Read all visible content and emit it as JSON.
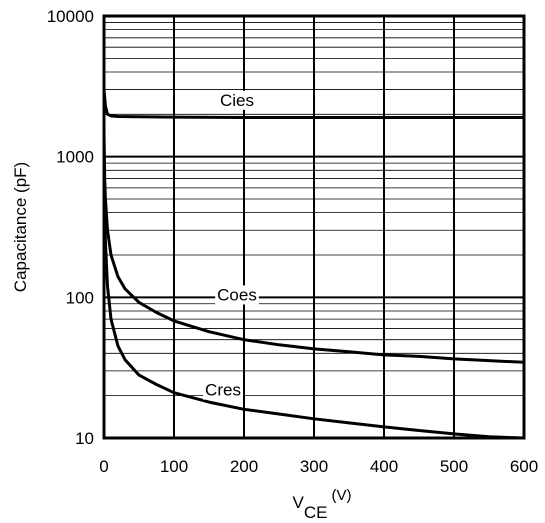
{
  "chart_data": {
    "type": "line",
    "title": "",
    "xlabel": {
      "main": "V",
      "sub": "CE",
      "unit": "(V)"
    },
    "ylabel": "Capacitance (pF)",
    "xlim": [
      0,
      600
    ],
    "ylim": [
      10,
      10000
    ],
    "y_scale": "log",
    "grid": true,
    "x_ticks": [
      0,
      100,
      200,
      300,
      400,
      500,
      600
    ],
    "x_tick_labels": [
      "0",
      "100",
      "200",
      "300",
      "400",
      "500",
      "600"
    ],
    "y_ticks": [
      10,
      100,
      1000,
      10000
    ],
    "y_tick_labels": [
      "10",
      "100",
      "1000",
      "10000"
    ],
    "series": [
      {
        "name": "Cies",
        "label_at": [
          190,
          2300
        ],
        "x": [
          0,
          2,
          5,
          10,
          20,
          50,
          100,
          200,
          300,
          400,
          500,
          600
        ],
        "y": [
          3000,
          2300,
          2000,
          1950,
          1930,
          1920,
          1910,
          1900,
          1900,
          1900,
          1900,
          1900
        ]
      },
      {
        "name": "Coes",
        "label_at": [
          190,
          95
        ],
        "x": [
          0,
          1,
          2,
          5,
          10,
          20,
          30,
          50,
          75,
          100,
          150,
          200,
          250,
          300,
          350,
          400,
          450,
          500,
          550,
          600
        ],
        "y": [
          1500,
          700,
          500,
          300,
          200,
          140,
          115,
          92,
          78,
          68,
          57,
          50,
          46,
          43,
          41,
          39,
          38,
          36.5,
          35.5,
          34.5
        ]
      },
      {
        "name": "Cres",
        "label_at": [
          170,
          20
        ],
        "x": [
          0,
          1,
          2,
          5,
          10,
          20,
          30,
          50,
          75,
          100,
          150,
          200,
          250,
          300,
          350,
          400,
          450,
          500,
          550,
          600
        ],
        "y": [
          900,
          400,
          250,
          120,
          70,
          45,
          36,
          28,
          24,
          21,
          18,
          16,
          14.8,
          13.7,
          12.8,
          12,
          11.3,
          10.7,
          10.2,
          10
        ]
      }
    ]
  }
}
